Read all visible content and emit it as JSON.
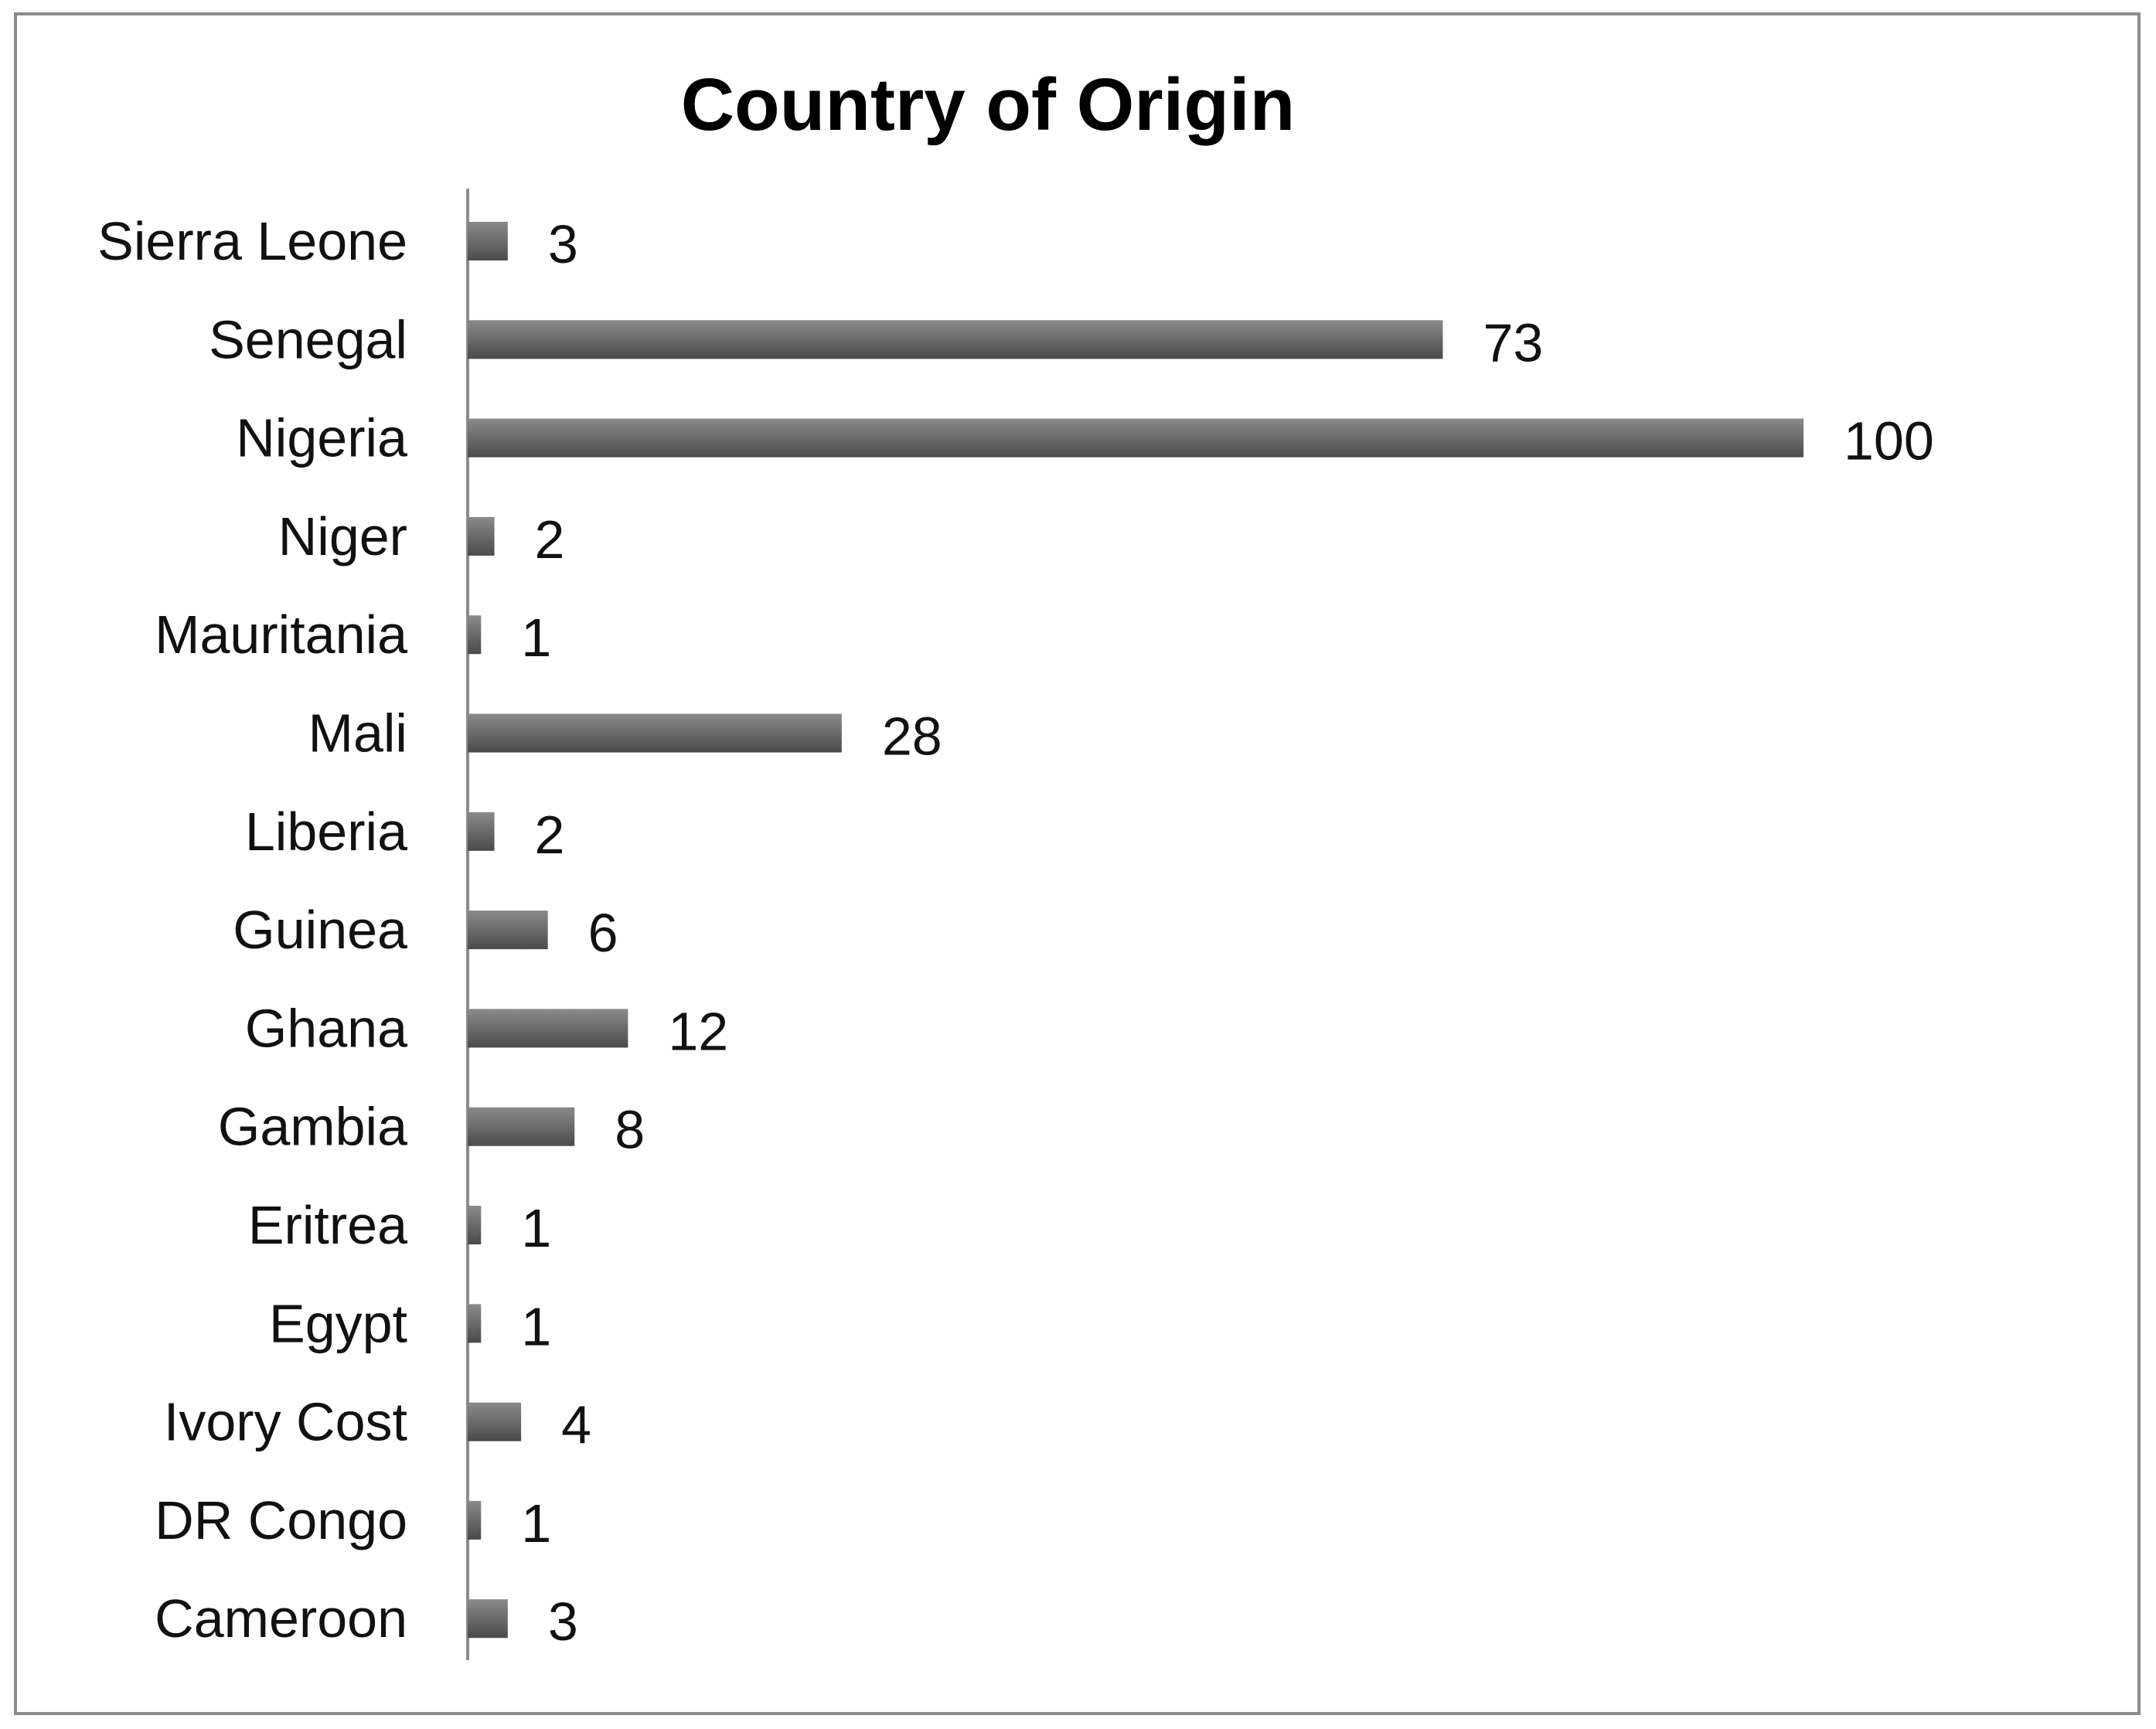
{
  "chart_data": {
    "type": "bar",
    "orientation": "horizontal",
    "title": "Country of Origin",
    "categories": [
      "Sierra Leone",
      "Senegal",
      "Nigeria",
      "Niger",
      "Mauritania",
      "Mali",
      "Liberia",
      "Guinea",
      "Ghana",
      "Gambia",
      "Eritrea",
      "Egypt",
      "Ivory Cost",
      "DR Congo",
      "Cameroon"
    ],
    "values": [
      3,
      73,
      100,
      2,
      1,
      28,
      2,
      6,
      12,
      8,
      1,
      1,
      4,
      1,
      3
    ],
    "xlim": [
      0,
      100
    ],
    "data_labels": true,
    "grid": false,
    "legend": "none",
    "colors": {
      "bar_dark": "#4a4a4a",
      "bar_mid": "#6e6e6e",
      "bar_light": "#8a8a8a",
      "axis": "#8c8c8c",
      "frame": "#8c8c8c"
    }
  }
}
